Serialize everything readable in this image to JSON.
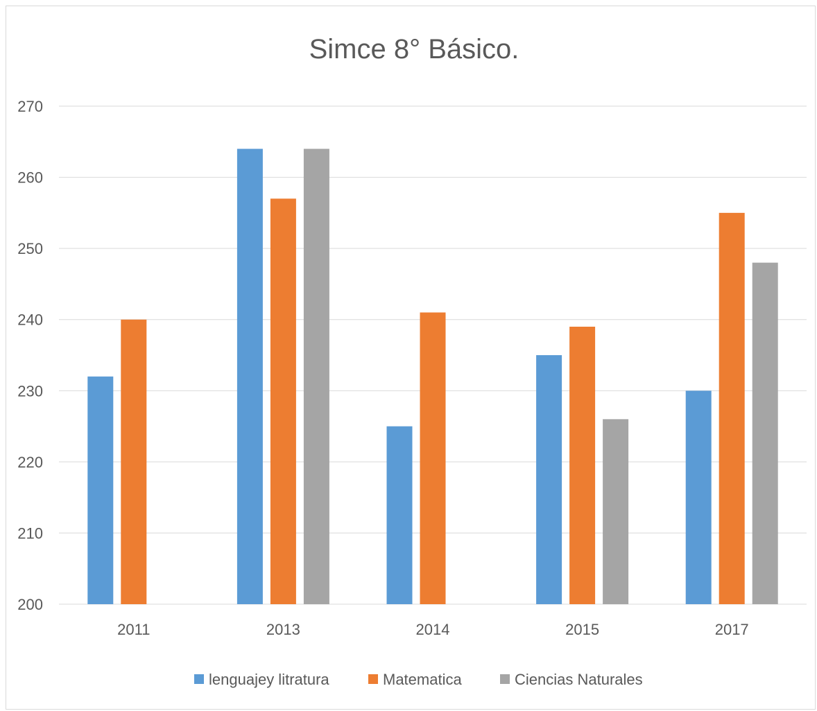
{
  "chart_data": {
    "type": "bar",
    "title": "Simce 8° Básico.",
    "categories": [
      "2011",
      "2013",
      "2014",
      "2015",
      "2017"
    ],
    "series": [
      {
        "name": "lenguajey litratura",
        "color": "#5b9bd5",
        "values": [
          232,
          264,
          225,
          235,
          230
        ]
      },
      {
        "name": "Matematica",
        "color": "#ed7d31",
        "values": [
          240,
          257,
          241,
          239,
          255
        ]
      },
      {
        "name": "Ciencias Naturales",
        "color": "#a5a5a5",
        "values": [
          null,
          264,
          null,
          226,
          248
        ]
      }
    ],
    "ylim": [
      200,
      270
    ],
    "yticks": [
      200,
      210,
      220,
      230,
      240,
      250,
      260,
      270
    ],
    "grid": true,
    "legend_position": "bottom"
  }
}
